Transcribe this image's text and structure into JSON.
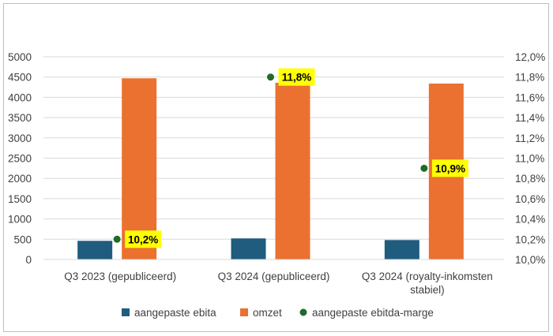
{
  "chart_data": {
    "type": "bar",
    "categories": [
      [
        "Q3 2023 (gepubliceerd)"
      ],
      [
        "Q3 2024 (gepubliceerd)"
      ],
      [
        "Q3 2024 (royalty-inkomsten",
        "stabiel)"
      ]
    ],
    "series": [
      {
        "name": "aangepaste ebita",
        "type": "bar",
        "axis": "left",
        "values": [
          460,
          520,
          480
        ]
      },
      {
        "name": "omzet",
        "type": "bar",
        "axis": "left",
        "values": [
          4470,
          4360,
          4340
        ]
      },
      {
        "name": "aangepaste ebitda-marge",
        "type": "scatter",
        "axis": "right",
        "values": [
          10.2,
          11.8,
          10.9
        ],
        "labels": [
          "10,2%",
          "11,8%",
          "10,9%"
        ]
      }
    ],
    "y_left": {
      "ylim": [
        0,
        5000
      ],
      "ticks": [
        "0",
        "500",
        "1000",
        "1500",
        "2000",
        "2500",
        "3000",
        "3500",
        "4000",
        "4500",
        "5000"
      ]
    },
    "y_right": {
      "ylim": [
        10.0,
        12.0
      ],
      "ticks": [
        "10,0%",
        "10,2%",
        "10,4%",
        "10,6%",
        "10,8%",
        "11,0%",
        "11,2%",
        "11,4%",
        "11,6%",
        "11,8%",
        "12,0%"
      ]
    },
    "colors": {
      "aangepaste ebita": "#1f5c7e",
      "omzet": "#ea7130",
      "aangepaste ebitda-marge": "#1e6b2b",
      "label_bg": "#ffff00",
      "grid": "#d9d9d9"
    },
    "grid": true,
    "legend": "bottom"
  }
}
